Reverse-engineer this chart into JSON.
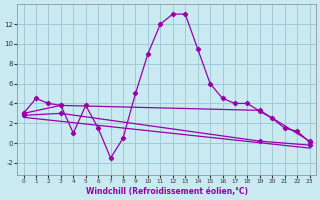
{
  "xlabel": "Windchill (Refroidissement éolien,°C)",
  "background_color": "#c8eaf0",
  "grid_color": "#a0c8d8",
  "line_color": "#9900aa",
  "xlim": [
    -0.5,
    23.5
  ],
  "ylim": [
    -3.2,
    14.0
  ],
  "xticks": [
    0,
    1,
    2,
    3,
    4,
    5,
    6,
    7,
    8,
    9,
    10,
    11,
    12,
    13,
    14,
    15,
    16,
    17,
    18,
    19,
    20,
    21,
    22,
    23
  ],
  "yticks": [
    -2,
    0,
    2,
    4,
    6,
    8,
    10,
    12
  ],
  "series1_x": [
    0,
    1,
    2,
    3,
    4,
    5,
    6,
    7,
    8,
    9,
    10,
    11,
    12,
    13,
    14,
    15,
    16,
    17,
    18,
    19,
    20,
    21,
    22,
    23
  ],
  "series1_y": [
    3.0,
    4.5,
    4.0,
    3.8,
    1.0,
    3.8,
    1.5,
    -1.5,
    0.5,
    5.0,
    9.0,
    12.0,
    13.0,
    13.0,
    9.5,
    6.0,
    4.5,
    4.0,
    4.0,
    3.2,
    2.5,
    1.5,
    1.2,
    0.1
  ],
  "series2_x": [
    0,
    3,
    19,
    23
  ],
  "series2_y": [
    3.0,
    3.8,
    3.3,
    0.2
  ],
  "series3_x": [
    0,
    3,
    19,
    23
  ],
  "series3_y": [
    2.8,
    3.0,
    0.2,
    -0.2
  ],
  "series4_x": [
    0,
    23
  ],
  "series4_y": [
    2.6,
    -0.5
  ],
  "xlabel_fontsize": 5.5,
  "tick_fontsize": 5.0
}
